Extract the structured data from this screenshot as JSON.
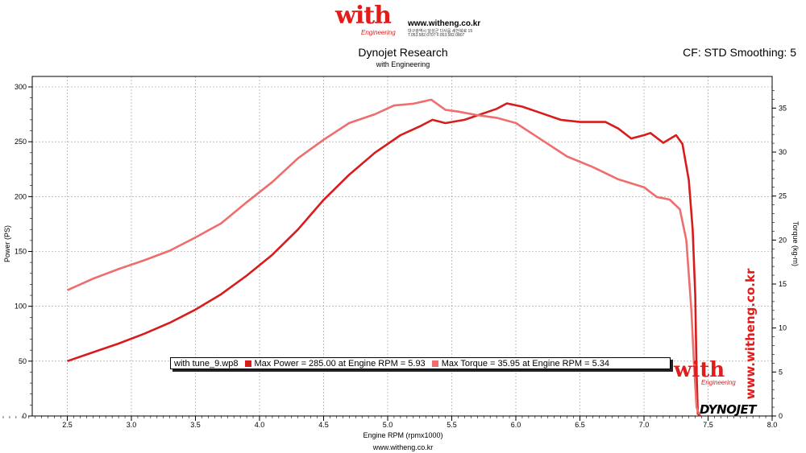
{
  "header": {
    "logo_text": "with",
    "logo_sub": "Engineering",
    "site_url": "www.witheng.co.kr",
    "address_line1": "대구광역시 달성군 다사읍 세천북로 15 ",
    "address_line2": "T.053.582.0707  F.053.582.0807",
    "cf_label": "CF: STD Smoothing: 5"
  },
  "watermark": {
    "vertical_url": "www.witheng.co.kr",
    "with_text": "with",
    "with_sub": "Engineering",
    "dynojet_text": "DYNOJET"
  },
  "footer": {
    "url": "www.witheng.co.kr"
  },
  "legend": {
    "file": "with tune_9.wp8",
    "power_text": "Max Power = 285.00 at Engine RPM = 5.93",
    "torque_text": "Max Torque = 35.95 at Engine RPM = 5.34"
  },
  "chart_data": {
    "type": "line",
    "title": "Dynojet Research",
    "subtitle": "with Engineering",
    "xlabel": "Engine RPM (rpmx1000)",
    "ylabel": "Power (PS)",
    "y2label": "Torque (kg-m)",
    "xlim": [
      2.0,
      8.0
    ],
    "ylim": [
      0,
      300
    ],
    "y2lim": [
      0,
      37.5
    ],
    "x_ticks": [
      "2.5",
      "3.0",
      "3.5",
      "4.0",
      "4.5",
      "5.0",
      "5.5",
      "6.0",
      "6.5",
      "7.0",
      "7.5",
      "8.0"
    ],
    "y_ticks": [
      "0",
      "50",
      "100",
      "150",
      "200",
      "250",
      "300"
    ],
    "y2_ticks": [
      "0",
      "5",
      "10",
      "15",
      "20",
      "25",
      "30",
      "35"
    ],
    "grid": true,
    "series": [
      {
        "name": "Power",
        "axis": "left",
        "color": "#d71c1c",
        "points": [
          [
            2.5,
            50
          ],
          [
            2.7,
            58
          ],
          [
            2.9,
            66
          ],
          [
            3.1,
            75
          ],
          [
            3.3,
            85
          ],
          [
            3.5,
            97
          ],
          [
            3.7,
            111
          ],
          [
            3.9,
            128
          ],
          [
            4.1,
            147
          ],
          [
            4.3,
            170
          ],
          [
            4.5,
            197
          ],
          [
            4.7,
            220
          ],
          [
            4.9,
            240
          ],
          [
            5.1,
            256
          ],
          [
            5.25,
            264
          ],
          [
            5.35,
            270
          ],
          [
            5.45,
            267
          ],
          [
            5.6,
            270
          ],
          [
            5.75,
            276
          ],
          [
            5.85,
            280
          ],
          [
            5.93,
            285
          ],
          [
            6.05,
            282
          ],
          [
            6.2,
            276
          ],
          [
            6.35,
            270
          ],
          [
            6.5,
            268
          ],
          [
            6.6,
            268
          ],
          [
            6.7,
            268
          ],
          [
            6.8,
            262
          ],
          [
            6.9,
            253
          ],
          [
            7.0,
            256
          ],
          [
            7.05,
            258
          ],
          [
            7.15,
            249
          ],
          [
            7.25,
            256
          ],
          [
            7.3,
            248
          ],
          [
            7.35,
            215
          ],
          [
            7.38,
            170
          ],
          [
            7.4,
            110
          ],
          [
            7.41,
            40
          ],
          [
            7.42,
            2
          ],
          [
            7.44,
            0
          ]
        ]
      },
      {
        "name": "Torque",
        "axis": "right",
        "color": "#ee6e6e",
        "points": [
          [
            2.5,
            14.3
          ],
          [
            2.7,
            15.6
          ],
          [
            2.9,
            16.7
          ],
          [
            3.1,
            17.7
          ],
          [
            3.3,
            18.8
          ],
          [
            3.5,
            20.3
          ],
          [
            3.7,
            21.9
          ],
          [
            3.9,
            24.3
          ],
          [
            4.1,
            26.6
          ],
          [
            4.3,
            29.3
          ],
          [
            4.5,
            31.4
          ],
          [
            4.7,
            33.3
          ],
          [
            4.9,
            34.3
          ],
          [
            5.05,
            35.3
          ],
          [
            5.2,
            35.5
          ],
          [
            5.34,
            35.95
          ],
          [
            5.45,
            34.8
          ],
          [
            5.55,
            34.6
          ],
          [
            5.7,
            34.2
          ],
          [
            5.85,
            33.9
          ],
          [
            6.0,
            33.3
          ],
          [
            6.2,
            31.4
          ],
          [
            6.4,
            29.5
          ],
          [
            6.6,
            28.3
          ],
          [
            6.8,
            26.9
          ],
          [
            7.0,
            26.0
          ],
          [
            7.1,
            24.9
          ],
          [
            7.2,
            24.6
          ],
          [
            7.28,
            23.5
          ],
          [
            7.33,
            20.0
          ],
          [
            7.37,
            12.0
          ],
          [
            7.39,
            6.0
          ],
          [
            7.41,
            1.0
          ],
          [
            7.43,
            0.2
          ]
        ]
      }
    ]
  }
}
